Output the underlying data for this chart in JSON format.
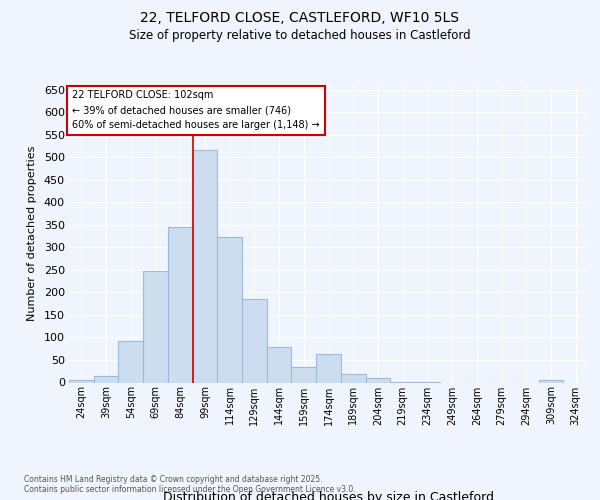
{
  "title_line1": "22, TELFORD CLOSE, CASTLEFORD, WF10 5LS",
  "title_line2": "Size of property relative to detached houses in Castleford",
  "xlabel": "Distribution of detached houses by size in Castleford",
  "ylabel": "Number of detached properties",
  "footer_line1": "Contains HM Land Registry data © Crown copyright and database right 2025.",
  "footer_line2": "Contains public sector information licensed under the Open Government Licence v3.0.",
  "annotation_line1": "22 TELFORD CLOSE: 102sqm",
  "annotation_line2": "← 39% of detached houses are smaller (746)",
  "annotation_line3": "60% of semi-detached houses are larger (1,148) →",
  "bins_left": [
    24,
    39,
    54,
    69,
    84,
    99,
    114,
    129,
    144,
    159,
    174,
    189,
    204,
    219,
    234,
    249,
    264,
    279,
    294,
    309,
    324
  ],
  "bar_values": [
    5,
    15,
    93,
    248,
    345,
    515,
    323,
    185,
    78,
    35,
    64,
    18,
    11,
    2,
    1,
    0,
    0,
    0,
    0,
    5,
    0
  ],
  "bin_width": 15,
  "bar_color": "#ccddf0",
  "bar_edge_color": "#99bbdd",
  "vline_x": 99,
  "vline_color": "#cc0000",
  "annot_edge_color": "#cc0000",
  "background_color": "#f0f4fc",
  "grid_color": "#ffffff",
  "ylim": [
    0,
    660
  ],
  "yticks": [
    0,
    50,
    100,
    150,
    200,
    250,
    300,
    350,
    400,
    450,
    500,
    550,
    600,
    650
  ]
}
